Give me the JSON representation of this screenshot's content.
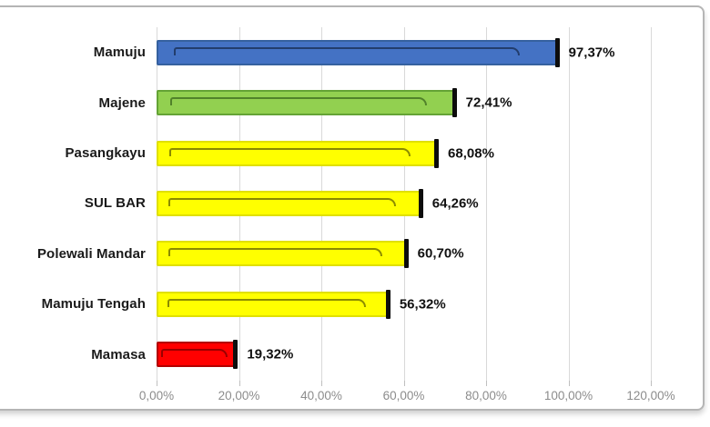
{
  "chart_data": {
    "type": "bar",
    "orientation": "horizontal",
    "title": "",
    "xlabel": "",
    "ylabel": "",
    "categories": [
      "Mamuju",
      "Majene",
      "Pasangkayu",
      "SUL BAR",
      "Polewali Mandar",
      "Mamuju Tengah",
      "Mamasa"
    ],
    "values": [
      97.37,
      72.41,
      68.08,
      64.26,
      60.7,
      56.32,
      19.32
    ],
    "value_labels": [
      "97,37%",
      "72,41%",
      "68,08%",
      "64,26%",
      "60,70%",
      "56,32%",
      "19,32%"
    ],
    "xlim": [
      0,
      120
    ],
    "x_tick_values": [
      0,
      20,
      40,
      60,
      80,
      100,
      120
    ],
    "x_tick_labels": [
      "0,00%",
      "20,00%",
      "40,00%",
      "60,00%",
      "80,00%",
      "100,00%",
      "120,00%"
    ],
    "grid": true,
    "legend": false,
    "bar_colors": [
      {
        "fill": "#4472C4",
        "border": "#35619f",
        "highlight": "#1f3864"
      },
      {
        "fill": "#92D050",
        "border": "#64a335",
        "highlight": "#4a7a26"
      },
      {
        "fill": "#FFFF00",
        "border": "#e0e000",
        "highlight": "#7f7f00"
      },
      {
        "fill": "#FFFF00",
        "border": "#e0e000",
        "highlight": "#7f7f00"
      },
      {
        "fill": "#FFFF00",
        "border": "#e0e000",
        "highlight": "#7f7f00"
      },
      {
        "fill": "#FFFF00",
        "border": "#e0e000",
        "highlight": "#7f7f00"
      },
      {
        "fill": "#FF0000",
        "border": "#b30000",
        "highlight": "#8f0000"
      }
    ]
  },
  "styles": {
    "end_cap_color": "#0d0d0d",
    "gridline_color": "#d9d9d9",
    "tickmark_color": "#bfbfbf",
    "category_label_color": "#1a1a1a",
    "value_label_color": "#111111",
    "axis_label_color": "#8c8c8c",
    "frame_border_color": "#b5b5b5"
  }
}
